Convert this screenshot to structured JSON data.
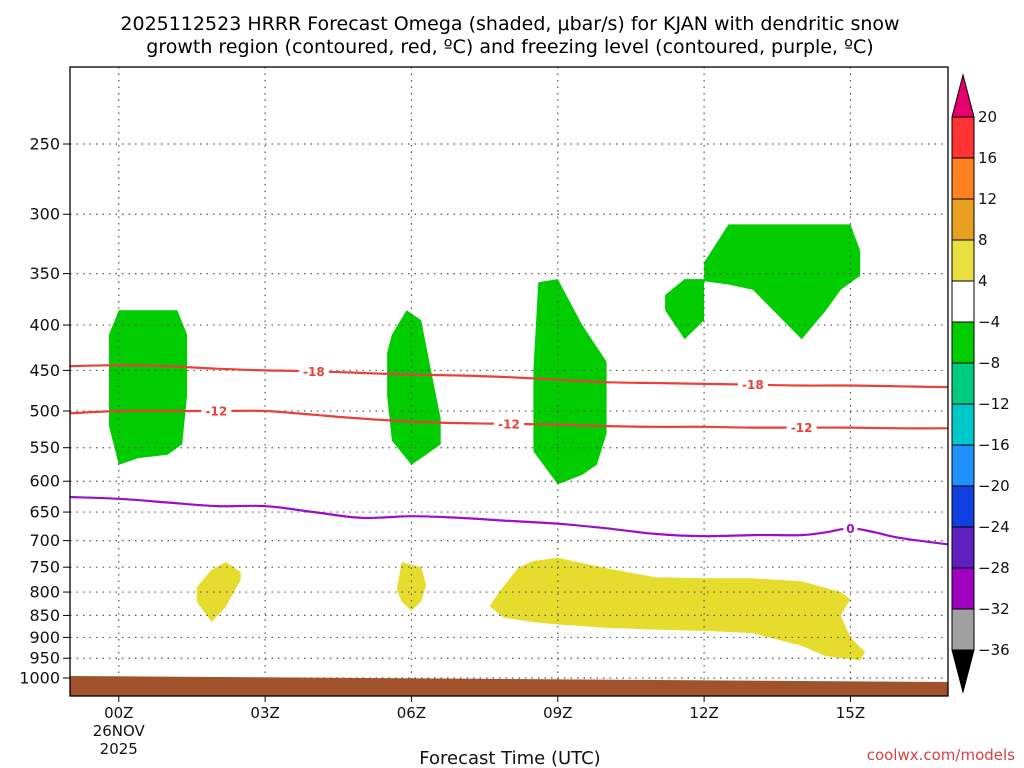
{
  "chart_data": {
    "type": "time-height cross section",
    "title_line1": "2025112523 HRRR Forecast Omega (shaded, μbar/s) for KJAN with dendritic snow",
    "title_line2": "growth region (contoured, red, ºC) and freezing level (contoured, purple, ºC)",
    "xlabel": "Forecast Time (UTC)",
    "credit": "coolwx.com/models",
    "x_range_hours": [
      -1,
      17
    ],
    "y_range_hpa": [
      200,
      1040
    ],
    "y_ticks": [
      250,
      300,
      350,
      400,
      450,
      500,
      550,
      600,
      650,
      700,
      750,
      800,
      850,
      900,
      950,
      1000
    ],
    "x_ticks": [
      {
        "hour": 0,
        "label": "00Z",
        "sub1": "26NOV",
        "sub2": "2025"
      },
      {
        "hour": 3,
        "label": "03Z",
        "sub1": "",
        "sub2": ""
      },
      {
        "hour": 6,
        "label": "06Z",
        "sub1": "",
        "sub2": ""
      },
      {
        "hour": 9,
        "label": "09Z",
        "sub1": "",
        "sub2": ""
      },
      {
        "hour": 12,
        "label": "12Z",
        "sub1": "",
        "sub2": ""
      },
      {
        "hour": 15,
        "label": "15Z",
        "sub1": "",
        "sub2": ""
      }
    ],
    "contours": [
      {
        "name": "-18",
        "label": "-18",
        "color": "#e8403a",
        "points": [
          [
            -1,
            445
          ],
          [
            0,
            444
          ],
          [
            1,
            445
          ],
          [
            2,
            448
          ],
          [
            3,
            450
          ],
          [
            4,
            451
          ],
          [
            5,
            453
          ],
          [
            6,
            455
          ],
          [
            7,
            456
          ],
          [
            8,
            458
          ],
          [
            9,
            461
          ],
          [
            10,
            464
          ],
          [
            11,
            465
          ],
          [
            12,
            466
          ],
          [
            13,
            467
          ],
          [
            14,
            468
          ],
          [
            15,
            468
          ],
          [
            16,
            469
          ],
          [
            17,
            470
          ]
        ],
        "label_hours": [
          4,
          13
        ]
      },
      {
        "name": "-12",
        "label": "-12",
        "color": "#e8403a",
        "points": [
          [
            -1,
            503
          ],
          [
            0,
            500
          ],
          [
            1,
            500
          ],
          [
            2,
            500
          ],
          [
            3,
            500
          ],
          [
            4,
            505
          ],
          [
            5,
            510
          ],
          [
            6,
            514
          ],
          [
            7,
            516
          ],
          [
            8,
            517
          ],
          [
            9,
            518
          ],
          [
            10,
            520
          ],
          [
            11,
            521
          ],
          [
            12,
            521
          ],
          [
            13,
            522
          ],
          [
            14,
            522
          ],
          [
            15,
            522
          ],
          [
            16,
            523
          ],
          [
            17,
            523
          ]
        ],
        "label_hours": [
          2,
          8,
          14
        ]
      },
      {
        "name": "freezing-level",
        "label": "0",
        "color": "#9a10c8",
        "points": [
          [
            -1,
            625
          ],
          [
            0,
            628
          ],
          [
            1,
            634
          ],
          [
            2,
            640
          ],
          [
            3,
            640
          ],
          [
            4,
            650
          ],
          [
            5,
            660
          ],
          [
            6,
            657
          ],
          [
            7,
            660
          ],
          [
            8,
            665
          ],
          [
            9,
            670
          ],
          [
            10,
            678
          ],
          [
            11,
            688
          ],
          [
            12,
            692
          ],
          [
            13,
            690
          ],
          [
            14,
            690
          ],
          [
            14.5,
            685
          ],
          [
            15,
            678
          ],
          [
            15.5,
            685
          ],
          [
            16,
            695
          ],
          [
            17,
            707
          ]
        ],
        "label_hours": [
          15
        ]
      }
    ],
    "shaded_regions": [
      {
        "category": "-8 to -4",
        "color": "#00cc00",
        "polygon": [
          [
            0,
            385
          ],
          [
            1.2,
            385
          ],
          [
            1.4,
            410
          ],
          [
            1.4,
            480
          ],
          [
            1.3,
            545
          ],
          [
            1,
            560
          ],
          [
            0.4,
            565
          ],
          [
            0,
            575
          ],
          [
            -0.2,
            520
          ],
          [
            -0.2,
            410
          ]
        ]
      },
      {
        "category": "-8 to -4",
        "color": "#00cc00",
        "polygon": [
          [
            5.9,
            385
          ],
          [
            6.2,
            395
          ],
          [
            6.4,
            450
          ],
          [
            6.6,
            510
          ],
          [
            6.6,
            545
          ],
          [
            6.3,
            560
          ],
          [
            6,
            575
          ],
          [
            5.6,
            540
          ],
          [
            5.5,
            480
          ],
          [
            5.5,
            430
          ],
          [
            5.6,
            410
          ]
        ]
      },
      {
        "category": "-8 to -4",
        "color": "#00cc00",
        "polygon": [
          [
            8.6,
            358
          ],
          [
            9,
            355
          ],
          [
            9.5,
            400
          ],
          [
            10,
            440
          ],
          [
            10,
            530
          ],
          [
            9.8,
            575
          ],
          [
            9.5,
            590
          ],
          [
            9,
            605
          ],
          [
            8.5,
            555
          ],
          [
            8.5,
            450
          ]
        ]
      },
      {
        "category": "-8 to -4",
        "color": "#00cc00",
        "polygon": [
          [
            11.6,
            355
          ],
          [
            12,
            355
          ],
          [
            12,
            395
          ],
          [
            11.6,
            415
          ],
          [
            11.2,
            385
          ],
          [
            11.2,
            370
          ]
        ]
      },
      {
        "category": "-8 to -4",
        "color": "#00cc00",
        "polygon": [
          [
            12.5,
            308
          ],
          [
            15,
            308
          ],
          [
            15.2,
            330
          ],
          [
            15.2,
            352
          ],
          [
            14.8,
            365
          ],
          [
            14.5,
            385
          ],
          [
            14,
            415
          ],
          [
            13,
            365
          ],
          [
            12.5,
            360
          ],
          [
            12,
            357
          ],
          [
            12,
            340
          ]
        ]
      },
      {
        "category": "4 to 8",
        "color": "#e5dc2e",
        "polygon": [
          [
            1.9,
            755
          ],
          [
            2.2,
            740
          ],
          [
            2.5,
            760
          ],
          [
            2.5,
            775
          ],
          [
            2.2,
            830
          ],
          [
            1.9,
            865
          ],
          [
            1.6,
            820
          ],
          [
            1.6,
            790
          ]
        ]
      },
      {
        "category": "4 to 8",
        "color": "#e5dc2e",
        "polygon": [
          [
            5.8,
            740
          ],
          [
            6.2,
            750
          ],
          [
            6.3,
            785
          ],
          [
            6.2,
            820
          ],
          [
            6,
            840
          ],
          [
            5.8,
            820
          ],
          [
            5.7,
            795
          ]
        ]
      },
      {
        "category": "4 to 8",
        "color": "#e5dc2e",
        "polygon": [
          [
            8.2,
            750
          ],
          [
            8.5,
            738
          ],
          [
            9,
            732
          ],
          [
            9.5,
            742
          ],
          [
            10,
            752
          ],
          [
            11,
            770
          ],
          [
            12,
            772
          ],
          [
            13,
            772
          ],
          [
            14,
            778
          ],
          [
            14.8,
            800
          ],
          [
            15,
            815
          ],
          [
            14.8,
            850
          ],
          [
            15,
            900
          ],
          [
            15.3,
            935
          ],
          [
            15.2,
            955
          ],
          [
            14.5,
            945
          ],
          [
            14,
            920
          ],
          [
            13,
            890
          ],
          [
            12,
            885
          ],
          [
            11,
            882
          ],
          [
            10,
            878
          ],
          [
            9,
            870
          ],
          [
            8.5,
            865
          ],
          [
            7.9,
            855
          ],
          [
            7.6,
            830
          ],
          [
            7.8,
            800
          ]
        ]
      }
    ],
    "terrain_color": "#a0522d",
    "colorbar": {
      "levels": [
        "20",
        "16",
        "12",
        "8",
        "4",
        "−4",
        "−8",
        "−12",
        "−16",
        "−20",
        "−24",
        "−28",
        "−32",
        "−36"
      ],
      "colors": [
        "#e6006e",
        "#ff3333",
        "#ff8020",
        "#e8a020",
        "#e8e040",
        "#ffffff",
        "#00cc00",
        "#00cc80",
        "#00c8c8",
        "#2090ff",
        "#1040e0",
        "#6020c0",
        "#a000c0",
        "#a0a0a0",
        "#000000"
      ]
    }
  }
}
